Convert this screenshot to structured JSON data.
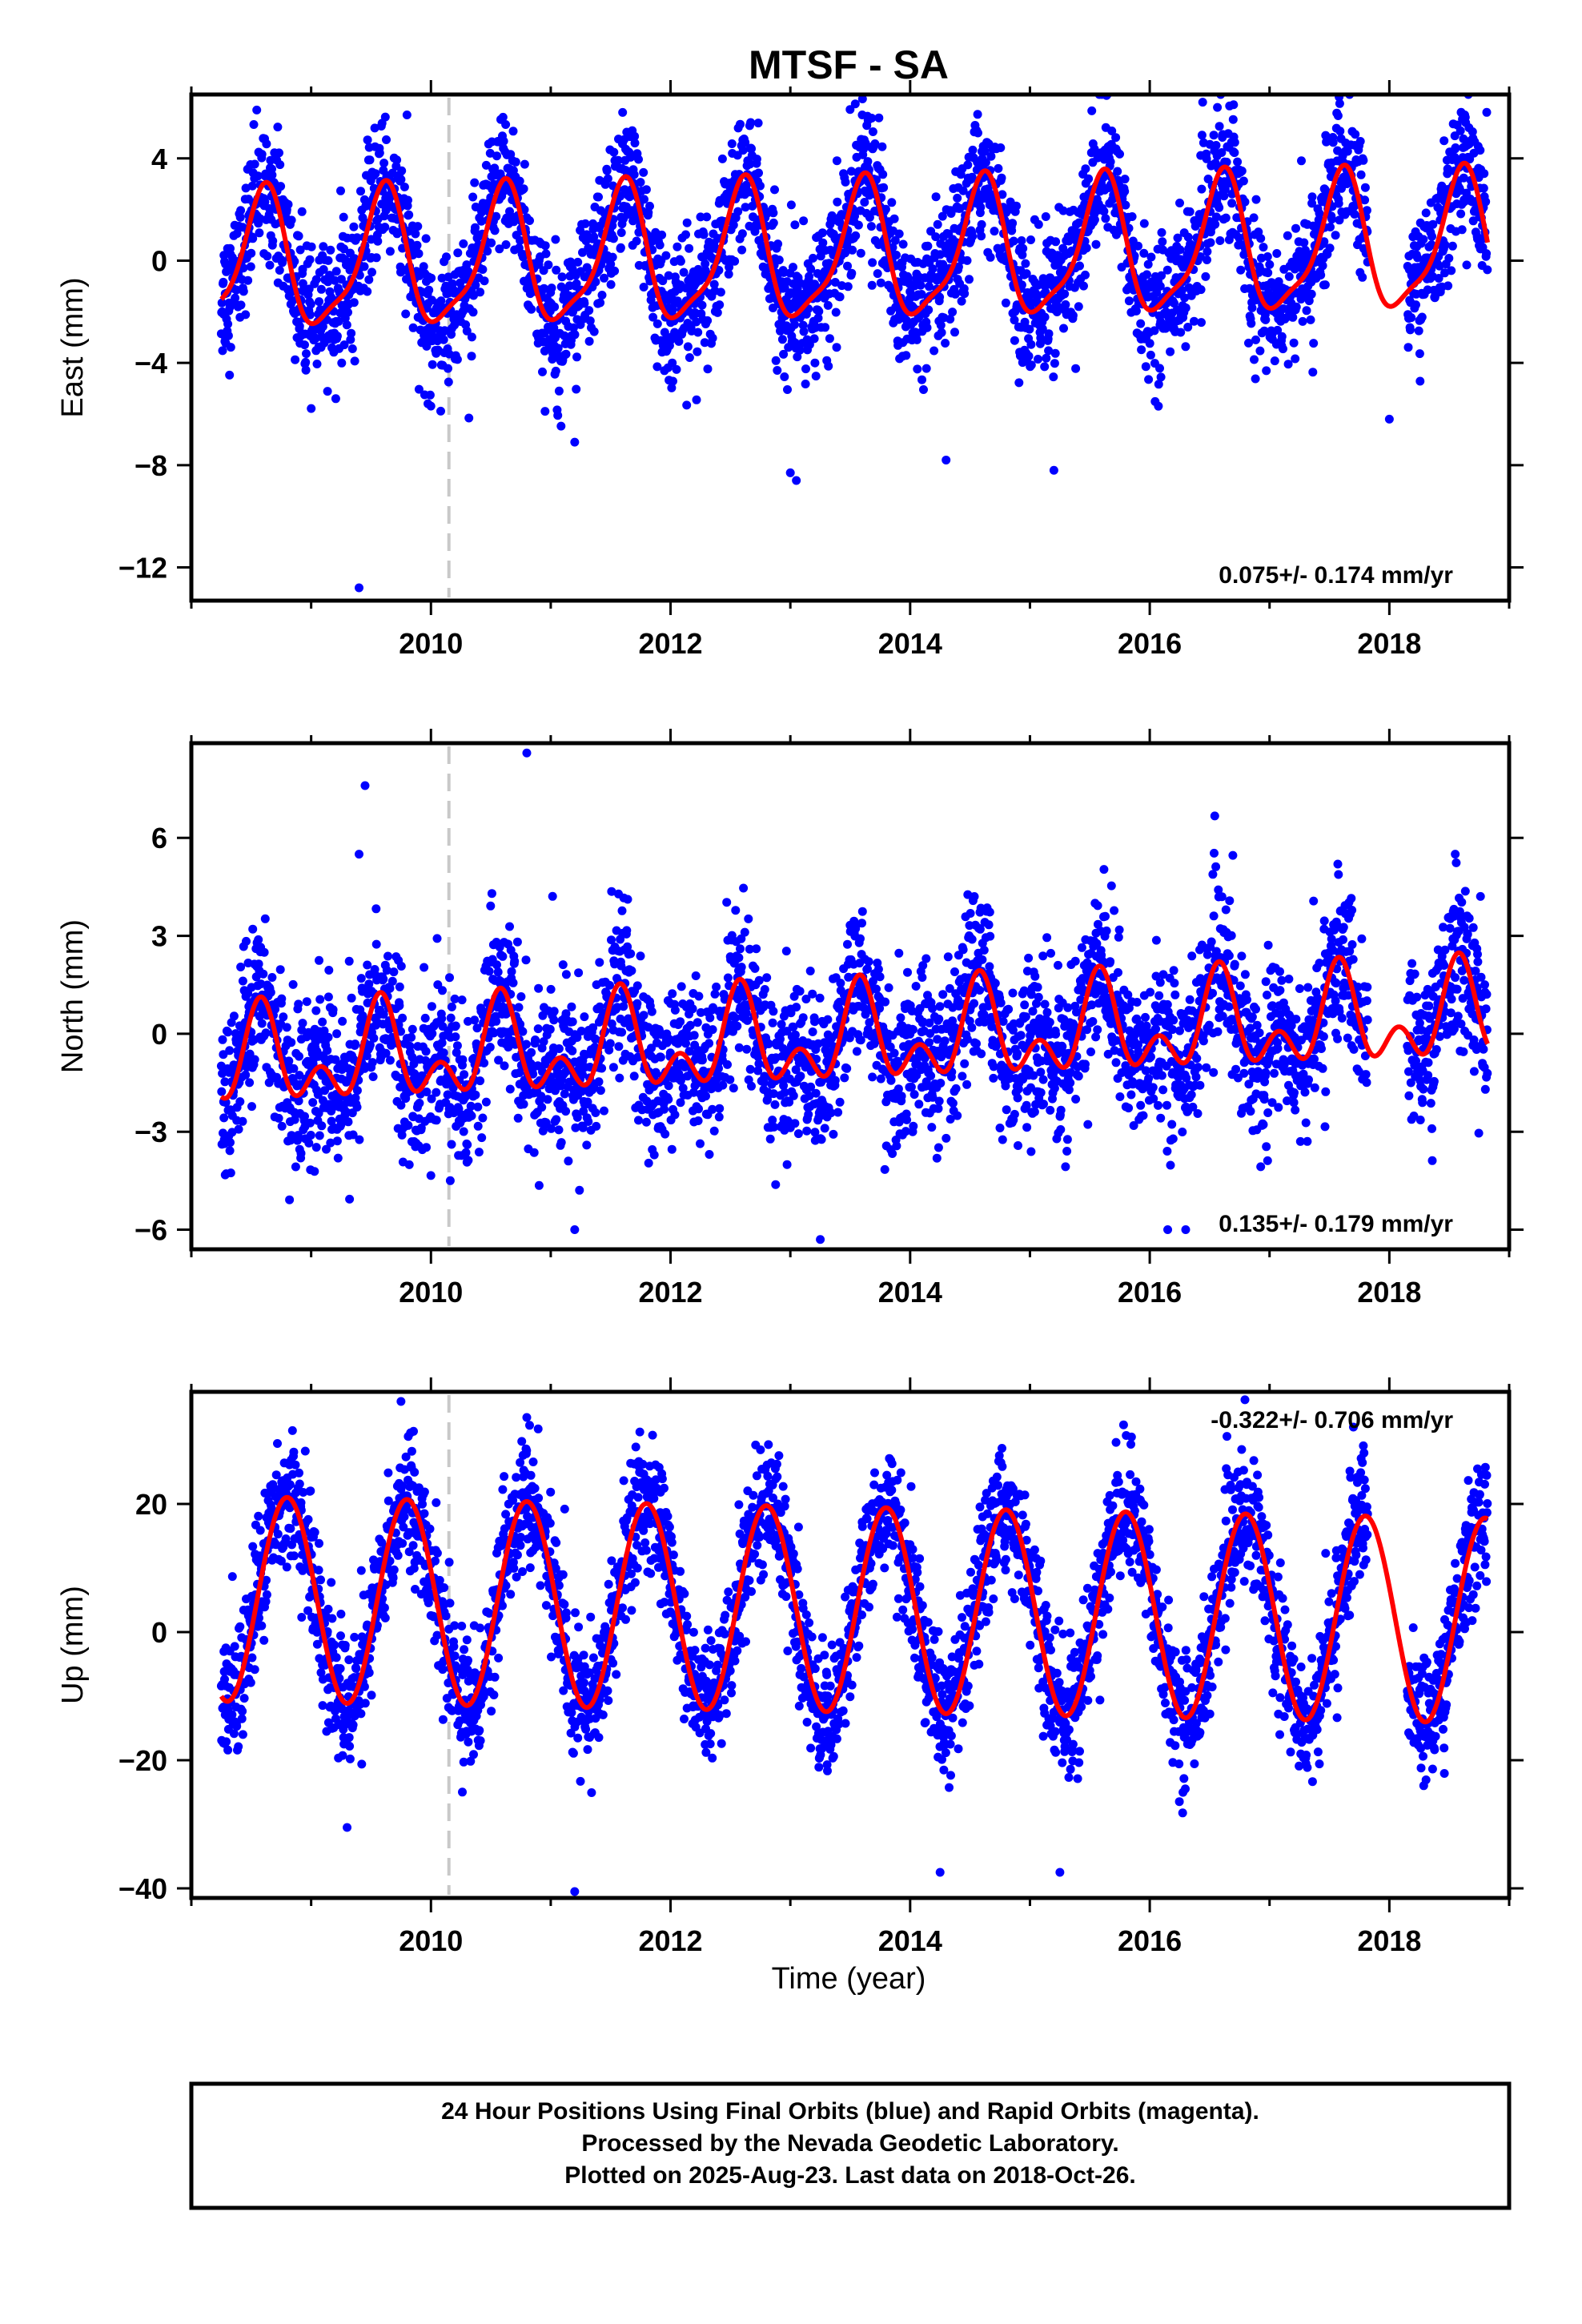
{
  "title": "MTSF - SA",
  "xlabel": "Time (year)",
  "footer_lines": [
    "24 Hour Positions Using Final Orbits (blue) and Rapid Orbits (magenta).",
    "Processed by the Nevada Geodetic Laboratory.",
    "Plotted on 2025-Aug-23. Last data on 2018-Oct-26."
  ],
  "colors": {
    "final_orbits": "#0000ff",
    "model_fit": "#ff0000",
    "equipment_change": "#c8c8c8"
  },
  "chart_data": [
    {
      "type": "scatter",
      "title": "MTSF - SA",
      "xlabel": "",
      "ylabel": "East (mm)",
      "xlim": [
        2008.0,
        2019.0
      ],
      "ylim": [
        -13.3,
        6.5
      ],
      "xticks": [
        2010,
        2012,
        2014,
        2016,
        2018
      ],
      "yticks": [
        4,
        0,
        -4,
        -8,
        -12
      ],
      "rate_text": "0.075+/- 0.174 mm/yr",
      "rate_pos": "bottom-right",
      "equipment_change_year": 2010.15,
      "data_start": 2008.25,
      "data_end": 2018.82,
      "gaps": [
        [
          2017.82,
          2018.15
        ]
      ],
      "scatter_sd": 1.3,
      "model": {
        "trend": 0.075,
        "offset": 0.2,
        "amp": 2.6,
        "phase_peak": 0.6,
        "semi_amp": 0.7,
        "semi_phase_peak": 0.15
      },
      "outliers": [
        [
          2009.4,
          -12.8
        ],
        [
          2013.05,
          -8.6
        ],
        [
          2013.0,
          -8.3
        ],
        [
          2013.6,
          5.7
        ],
        [
          2016.7,
          6.1
        ],
        [
          2011.6,
          5.8
        ],
        [
          2009.8,
          5.7
        ],
        [
          2014.3,
          -7.8
        ],
        [
          2018.0,
          -6.2
        ],
        [
          2015.2,
          -8.2
        ],
        [
          2011.2,
          -7.1
        ]
      ]
    },
    {
      "type": "scatter",
      "title": "",
      "xlabel": "",
      "ylabel": "North (mm)",
      "xlim": [
        2008.0,
        2019.0
      ],
      "ylim": [
        -6.6,
        8.9
      ],
      "xticks": [
        2010,
        2012,
        2014,
        2016,
        2018
      ],
      "yticks": [
        6,
        3,
        0,
        -3,
        -6
      ],
      "rate_text": "0.135+/- 0.179 mm/yr",
      "rate_pos": "bottom-right",
      "equipment_change_year": 2010.15,
      "data_start": 2008.25,
      "data_end": 2018.82,
      "gaps": [
        [
          2017.82,
          2018.15
        ]
      ],
      "scatter_sd": 1.2,
      "model": {
        "trend": 0.135,
        "offset": -0.2,
        "amp": 1.1,
        "phase_peak": 0.58,
        "semi_amp": 0.9,
        "semi_phase_peak": 0.08
      },
      "outliers": [
        [
          2009.45,
          7.6
        ],
        [
          2010.8,
          8.6
        ],
        [
          2009.4,
          5.5
        ],
        [
          2013.25,
          -6.3
        ],
        [
          2016.15,
          -6.0
        ],
        [
          2011.2,
          -6.0
        ],
        [
          2018.55,
          5.5
        ],
        [
          2016.3,
          -6.0
        ]
      ]
    },
    {
      "type": "scatter",
      "title": "",
      "xlabel": "Time (year)",
      "ylabel": "Up (mm)",
      "xlim": [
        2008.0,
        2019.0
      ],
      "ylim": [
        -41.5,
        37.5
      ],
      "xticks": [
        2010,
        2012,
        2014,
        2016,
        2018
      ],
      "yticks": [
        20,
        0,
        -20,
        -40
      ],
      "rate_text": "-0.322+/- 0.706 mm/yr",
      "rate_pos": "top-right",
      "equipment_change_year": 2010.15,
      "data_start": 2008.25,
      "data_end": 2018.82,
      "gaps": [
        [
          2017.82,
          2018.15
        ]
      ],
      "scatter_sd": 5.0,
      "model": {
        "trend": -0.322,
        "offset": 3.5,
        "amp": 16.0,
        "phase_peak": 0.8,
        "semi_amp": 0.0,
        "semi_phase_peak": 0.0
      },
      "outliers": [
        [
          2009.75,
          36.0
        ],
        [
          2011.2,
          -40.5
        ],
        [
          2009.3,
          -30.5
        ],
        [
          2014.25,
          -37.5
        ],
        [
          2015.25,
          -37.5
        ],
        [
          2017.7,
          32.0
        ],
        [
          2010.8,
          33.5
        ]
      ]
    }
  ]
}
